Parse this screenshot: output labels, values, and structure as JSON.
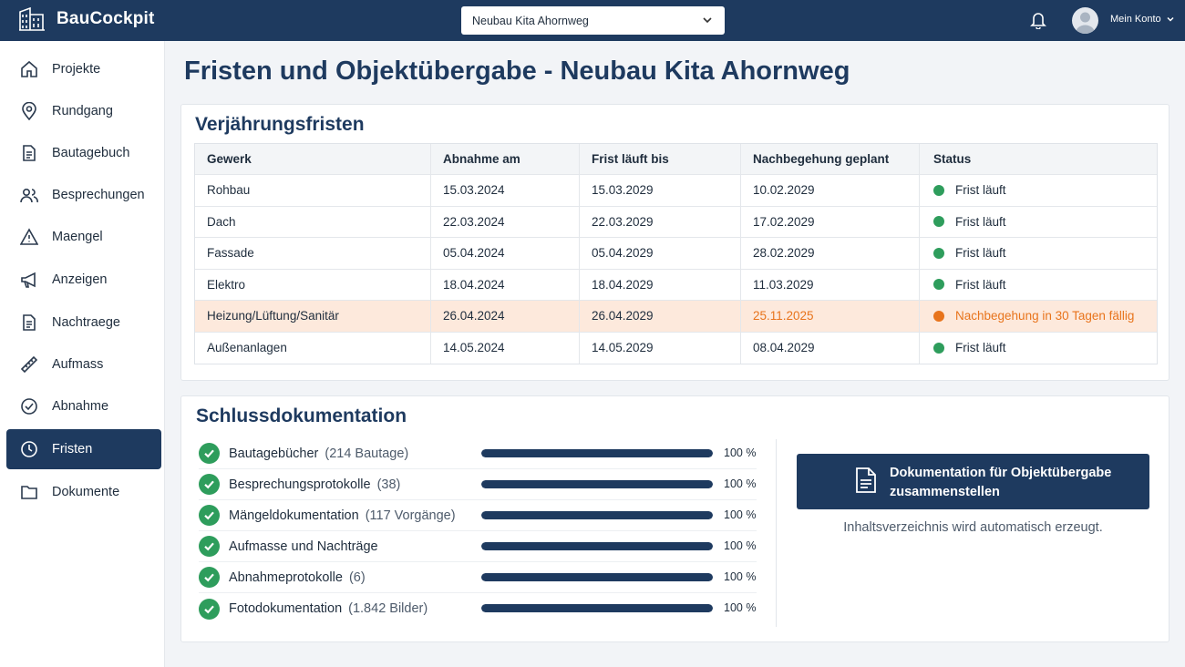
{
  "app": {
    "name": "BauCockpit"
  },
  "header": {
    "project_select": "Neubau Kita Ahornweg",
    "account_label": "Mein Konto"
  },
  "sidebar": {
    "items": [
      {
        "label": "Projekte",
        "icon": "home-icon"
      },
      {
        "label": "Rundgang",
        "icon": "map-pin-icon"
      },
      {
        "label": "Bautagebuch",
        "icon": "document-icon"
      },
      {
        "label": "Besprechungen",
        "icon": "users-icon"
      },
      {
        "label": "Maengel",
        "icon": "warning-icon"
      },
      {
        "label": "Anzeigen",
        "icon": "megaphone-icon"
      },
      {
        "label": "Nachtraege",
        "icon": "document-icon"
      },
      {
        "label": "Aufmass",
        "icon": "ruler-icon"
      },
      {
        "label": "Abnahme",
        "icon": "check-circle-icon"
      },
      {
        "label": "Fristen",
        "icon": "clock-icon",
        "active": true
      },
      {
        "label": "Dokumente",
        "icon": "folder-icon"
      }
    ]
  },
  "page": {
    "title": "Fristen und Objektübergabe - Neubau Kita Ahornweg"
  },
  "verjaehrung": {
    "title": "Verjährungsfristen",
    "columns": [
      "Gewerk",
      "Abnahme am",
      "Frist läuft bis",
      "Nachbegehung geplant",
      "Status"
    ],
    "rows": [
      {
        "gewerk": "Rohbau",
        "abnahme": "15.03.2024",
        "frist": "15.03.2029",
        "nachbegehung": "10.02.2029",
        "status": "Frist läuft",
        "warn": false
      },
      {
        "gewerk": "Dach",
        "abnahme": "22.03.2024",
        "frist": "22.03.2029",
        "nachbegehung": "17.02.2029",
        "status": "Frist läuft",
        "warn": false
      },
      {
        "gewerk": "Fassade",
        "abnahme": "05.04.2024",
        "frist": "05.04.2029",
        "nachbegehung": "28.02.2029",
        "status": "Frist läuft",
        "warn": false
      },
      {
        "gewerk": "Elektro",
        "abnahme": "18.04.2024",
        "frist": "18.04.2029",
        "nachbegehung": "11.03.2029",
        "status": "Frist läuft",
        "warn": false
      },
      {
        "gewerk": "Heizung/Lüftung/Sanitär",
        "abnahme": "26.04.2024",
        "frist": "26.04.2029",
        "nachbegehung": "25.11.2025",
        "status": "Nachbegehung in 30 Tagen fällig",
        "warn": true
      },
      {
        "gewerk": "Außenanlagen",
        "abnahme": "14.05.2024",
        "frist": "14.05.2029",
        "nachbegehung": "08.04.2029",
        "status": "Frist läuft",
        "warn": false
      }
    ]
  },
  "schluss": {
    "title": "Schlussdokumentation",
    "items": [
      {
        "label": "Bautagebücher",
        "count": "(214 Bautage)",
        "progress": 100,
        "pct": "100 %"
      },
      {
        "label": "Besprechungsprotokolle",
        "count": "(38)",
        "progress": 100,
        "pct": "100 %"
      },
      {
        "label": "Mängeldokumentation",
        "count": "(117 Vorgänge)",
        "progress": 100,
        "pct": "100 %"
      },
      {
        "label": "Aufmasse und Nachträge",
        "count": "",
        "progress": 100,
        "pct": "100 %"
      },
      {
        "label": "Abnahmeprotokolle",
        "count": "(6)",
        "progress": 100,
        "pct": "100 %"
      },
      {
        "label": "Fotodokumentation",
        "count": "(1.842 Bilder)",
        "progress": 100,
        "pct": "100 %"
      }
    ],
    "button_label": "Dokumentation für Objektübergabe zusammenstellen",
    "hint": "Inhaltsverzeichnis wird automatisch erzeugt."
  },
  "colors": {
    "primary": "#1e3a5f",
    "status_ok": "#2e9d5c",
    "status_warn": "#e8741c",
    "warn_row_bg": "#fde9dc"
  }
}
